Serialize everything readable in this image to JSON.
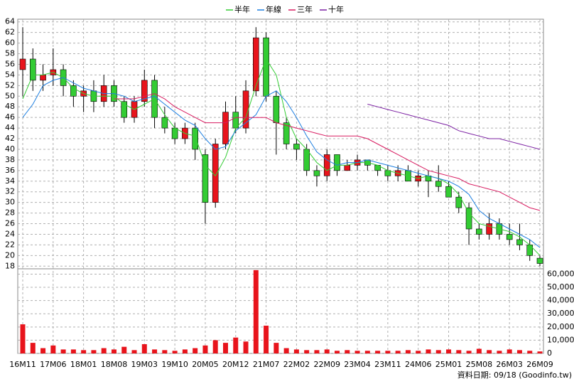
{
  "chart_data": {
    "type": "candlestick",
    "categories": [
      "16M11",
      null,
      null,
      "17M06",
      null,
      null,
      "18M01",
      null,
      null,
      "18M08",
      null,
      null,
      "19M03",
      null,
      null,
      "19M10",
      null,
      null,
      "20M05",
      null,
      null,
      "20M12",
      null,
      null,
      "21M07",
      null,
      null,
      "22M02",
      null,
      null,
      "22M09",
      null,
      null,
      "23M04",
      null,
      null,
      "23M11",
      null,
      null,
      "24M06",
      null,
      null,
      "25M01",
      null,
      null,
      "25M08",
      null,
      null,
      "26M03",
      null,
      null,
      "26M09"
    ],
    "open": [
      55,
      57,
      53,
      54,
      55,
      52,
      50,
      51,
      49,
      52,
      49,
      46,
      49,
      53,
      46,
      44,
      42,
      44,
      39,
      30,
      41,
      47,
      44,
      51,
      61,
      50,
      45,
      41,
      40,
      36,
      35,
      39,
      36,
      37,
      38,
      37,
      36,
      35,
      36,
      34,
      35,
      34,
      33,
      31,
      29,
      25,
      24,
      26,
      24,
      23,
      22,
      19.5
    ],
    "high": [
      63,
      59,
      56,
      59,
      56,
      53,
      52,
      53,
      54,
      53,
      50,
      50,
      55,
      54,
      48,
      45,
      45,
      45,
      40,
      42,
      49,
      50,
      53,
      63,
      62,
      51,
      46,
      42,
      41,
      37,
      40,
      39,
      38,
      39,
      38,
      37,
      37,
      37,
      37,
      36,
      36,
      37,
      34,
      32,
      30,
      26,
      28,
      27,
      26,
      26,
      23,
      20
    ],
    "low": [
      50,
      51,
      51,
      52,
      50,
      48,
      47,
      47,
      48,
      48,
      45,
      45,
      48,
      44,
      43,
      41,
      41,
      38,
      26,
      29,
      40,
      43,
      43,
      50,
      49,
      39,
      40,
      38,
      35,
      33,
      34,
      35,
      36,
      36,
      36,
      35,
      34,
      34,
      34,
      33,
      31,
      32,
      31,
      28,
      22,
      23,
      23,
      23,
      22,
      21,
      19,
      18
    ],
    "close": [
      57,
      53,
      54,
      55,
      52,
      50,
      51,
      49,
      52,
      49,
      46,
      49,
      53,
      46,
      44,
      42,
      44,
      40,
      30,
      41,
      47,
      44,
      51,
      61,
      50,
      45,
      41,
      40,
      36,
      35,
      39,
      36,
      37,
      38,
      37,
      36,
      35,
      36,
      34,
      35,
      34,
      33,
      31,
      29,
      25,
      24,
      26,
      24,
      23,
      22,
      20,
      18.5
    ],
    "up_color": "#e8141c",
    "down_color": "#33cc33",
    "ylim": [
      17.5,
      64.5
    ],
    "yticks": [
      18,
      20,
      22,
      24,
      26,
      28,
      30,
      32,
      34,
      36,
      38,
      40,
      42,
      44,
      46,
      48,
      50,
      52,
      54,
      56,
      58,
      60,
      62,
      64
    ],
    "grid": true,
    "series": [
      {
        "name": "半年",
        "color": "#33cc33",
        "values": [
          49.5,
          54,
          54,
          54.5,
          53.5,
          51.5,
          50.5,
          50,
          50,
          50,
          48.5,
          47.5,
          48.5,
          49.5,
          46.5,
          44,
          43,
          42.5,
          37,
          35,
          38.5,
          44,
          46,
          52,
          57,
          54,
          46,
          42,
          40,
          37.5,
          36,
          37,
          37,
          37.5,
          37.5,
          37,
          36,
          35.5,
          35,
          34.5,
          35,
          34.5,
          33.5,
          31.5,
          28,
          26,
          25.5,
          25,
          24.5,
          23.5,
          22,
          20
        ]
      },
      {
        "name": "年線",
        "color": "#1e7fe0",
        "values": [
          46,
          48.5,
          52,
          53,
          53.5,
          52.5,
          51.5,
          51,
          50.5,
          50.5,
          50,
          49,
          49.5,
          50,
          48.5,
          47,
          45.5,
          44.5,
          42,
          40,
          40.5,
          43.5,
          45,
          46.5,
          50,
          51,
          49,
          46,
          42.5,
          39.5,
          38,
          37,
          37.5,
          37.5,
          38,
          37.5,
          37,
          36.5,
          36,
          35.5,
          35,
          34.5,
          34,
          33,
          31.5,
          28.5,
          27,
          26,
          25,
          24,
          23,
          21.5
        ]
      },
      {
        "name": "三年",
        "color": "#d81b60",
        "values": [
          null,
          null,
          null,
          null,
          null,
          null,
          null,
          null,
          null,
          49.5,
          49.5,
          49.5,
          50,
          50.5,
          49.5,
          48,
          47,
          46,
          45,
          45,
          45,
          46,
          46,
          46,
          46,
          45,
          44.5,
          44,
          43.5,
          43,
          42.5,
          42.5,
          42.5,
          42.5,
          42,
          41,
          40,
          39,
          38,
          37,
          36,
          35.5,
          35,
          34.5,
          33.5,
          33,
          32.5,
          32,
          31,
          30,
          29,
          28.5
        ]
      },
      {
        "name": "十年",
        "color": "#7b1fa2",
        "values": [
          null,
          null,
          null,
          null,
          null,
          null,
          null,
          null,
          null,
          null,
          null,
          null,
          null,
          null,
          null,
          null,
          null,
          null,
          null,
          null,
          null,
          null,
          null,
          null,
          null,
          null,
          null,
          null,
          null,
          null,
          null,
          null,
          null,
          null,
          48.5,
          48,
          47.5,
          47,
          46.5,
          46,
          45.5,
          45,
          44.5,
          43.5,
          43,
          42.5,
          42,
          42,
          41.5,
          41,
          40.5,
          40
        ]
      }
    ],
    "volume": {
      "color": "#e8141c",
      "values": [
        22000,
        8000,
        4000,
        6000,
        3000,
        3000,
        2500,
        2500,
        4000,
        3000,
        5000,
        2500,
        7000,
        3000,
        2500,
        2000,
        3000,
        4000,
        6000,
        10000,
        8000,
        12000,
        9000,
        63000,
        21000,
        8000,
        4000,
        3000,
        2500,
        2500,
        3000,
        2000,
        2500,
        2000,
        2000,
        2000,
        2000,
        2000,
        2500,
        2000,
        3000,
        2500,
        3000,
        2500,
        2000,
        3500,
        2500,
        2000,
        3000,
        2500,
        2000,
        1500
      ],
      "ylim": [
        0,
        64000
      ],
      "yticks": [
        0,
        {
          "value": 10000,
          "label": "10,000"
        },
        {
          "value": 20000,
          "label": "20,000"
        },
        {
          "value": 30000,
          "label": "30,000"
        },
        {
          "value": 40000,
          "label": "40,000"
        },
        {
          "value": 50000,
          "label": "50,000"
        },
        {
          "value": 60000,
          "label": "60,000"
        }
      ]
    },
    "source_note": "資料日期: 09/18  (Goodinfo.tw)"
  }
}
